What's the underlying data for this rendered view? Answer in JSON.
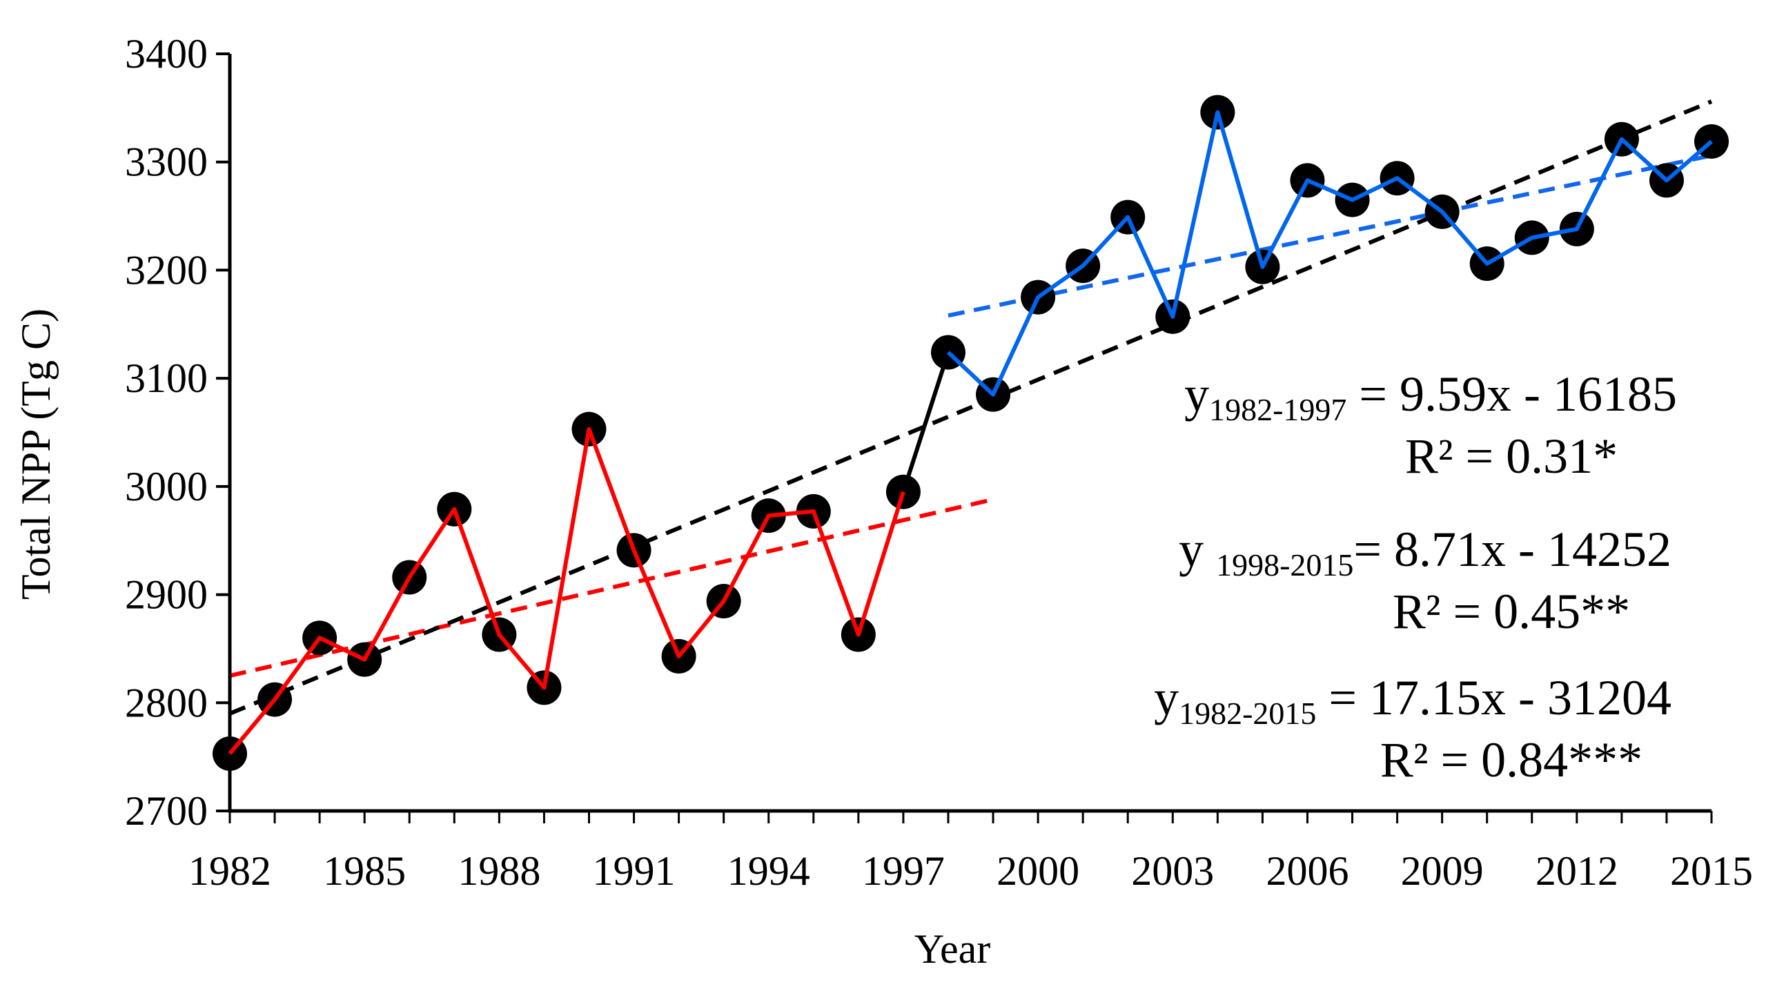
{
  "chart_data": {
    "type": "line",
    "title": "",
    "xlabel": "Year",
    "ylabel": "Total NPP (Tg C)",
    "xlim": [
      1982,
      2015
    ],
    "ylim": [
      2700,
      3400
    ],
    "x_ticks": [
      "1982",
      "1985",
      "1988",
      "1991",
      "1994",
      "1997",
      "2000",
      "2003",
      "2006",
      "2009",
      "2012",
      "2015"
    ],
    "y_ticks": [
      "2700",
      "2800",
      "2900",
      "3000",
      "3100",
      "3200",
      "3300",
      "3400"
    ],
    "grid": false,
    "points": [
      {
        "x": 1982,
        "y": 2753
      },
      {
        "x": 1983,
        "y": 2803
      },
      {
        "x": 1984,
        "y": 2860
      },
      {
        "x": 1985,
        "y": 2840
      },
      {
        "x": 1986,
        "y": 2916
      },
      {
        "x": 1987,
        "y": 2979
      },
      {
        "x": 1988,
        "y": 2863
      },
      {
        "x": 1989,
        "y": 2814
      },
      {
        "x": 1990,
        "y": 3053
      },
      {
        "x": 1991,
        "y": 2941
      },
      {
        "x": 1992,
        "y": 2843
      },
      {
        "x": 1993,
        "y": 2894
      },
      {
        "x": 1994,
        "y": 2973
      },
      {
        "x": 1995,
        "y": 2977
      },
      {
        "x": 1996,
        "y": 2863
      },
      {
        "x": 1997,
        "y": 2995
      },
      {
        "x": 1998,
        "y": 3124
      },
      {
        "x": 1999,
        "y": 3085
      },
      {
        "x": 2000,
        "y": 3175
      },
      {
        "x": 2001,
        "y": 3204
      },
      {
        "x": 2002,
        "y": 3249
      },
      {
        "x": 2003,
        "y": 3157
      },
      {
        "x": 2004,
        "y": 3346
      },
      {
        "x": 2005,
        "y": 3203
      },
      {
        "x": 2006,
        "y": 3283
      },
      {
        "x": 2007,
        "y": 3265
      },
      {
        "x": 2008,
        "y": 3285
      },
      {
        "x": 2009,
        "y": 3254
      },
      {
        "x": 2010,
        "y": 3206
      },
      {
        "x": 2011,
        "y": 3230
      },
      {
        "x": 2012,
        "y": 3238
      },
      {
        "x": 2013,
        "y": 3321
      },
      {
        "x": 2014,
        "y": 3283
      },
      {
        "x": 2015,
        "y": 3319
      }
    ],
    "series": [
      {
        "name": "1982-1997",
        "color": "#ff0000",
        "x_range": [
          1982,
          1997
        ]
      },
      {
        "name": "1997-1998",
        "color": "#000000",
        "x_range": [
          1997,
          1998
        ]
      },
      {
        "name": "1998-2015",
        "color": "#0066ee",
        "x_range": [
          1998,
          2015
        ]
      }
    ],
    "trendlines": [
      {
        "name": "1982-1997",
        "color": "#ff0000",
        "x_range": [
          1982,
          1999
        ],
        "y_start": 2825,
        "y_end": 2988
      },
      {
        "name": "1998-2015",
        "color": "#1166ee",
        "x_range": [
          1998,
          2015
        ],
        "y_start": 3158,
        "y_end": 3306
      },
      {
        "name": "1982-2015",
        "color": "#000000",
        "x_range": [
          1982,
          2015
        ],
        "y_start": 2790,
        "y_end": 3356
      }
    ],
    "annotations": [
      {
        "id": "eq1",
        "prefix": "y",
        "sub": "1982-1997",
        "rest": " = 9.59x - 16185"
      },
      {
        "id": "r1",
        "text": "R² = 0.31*"
      },
      {
        "id": "eq2",
        "prefix": "y ",
        "sub": "1998-2015",
        "rest": "= 8.71x - 14252"
      },
      {
        "id": "r2",
        "text": "R² = 0.45**"
      },
      {
        "id": "eq3",
        "prefix": "y",
        "sub": "1982-2015",
        "rest": " = 17.15x - 31204"
      },
      {
        "id": "r3",
        "text": "R² = 0.84***"
      }
    ],
    "marker_color": "#000000"
  }
}
